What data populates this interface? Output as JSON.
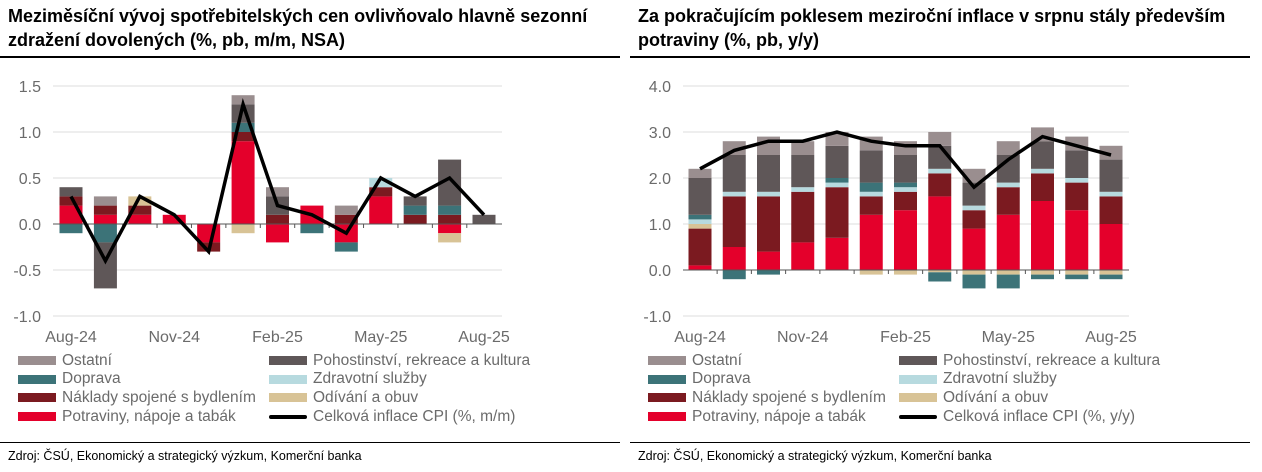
{
  "series_meta": [
    {
      "key": "food",
      "name": "Potraviny, nápoje a tabák",
      "color": "#e4002b"
    },
    {
      "key": "housing",
      "name": "Náklady spojené s bydlením",
      "color": "#7b1a20"
    },
    {
      "key": "clothing",
      "name": "Odívání a obuv",
      "color": "#d8c396"
    },
    {
      "key": "health",
      "name": "Zdravotní služby",
      "color": "#b7dadf"
    },
    {
      "key": "transport",
      "name": "Doprava",
      "color": "#3c7378"
    },
    {
      "key": "leisure",
      "name": "Pohostinství, rekreace a kultura",
      "color": "#5f5758"
    },
    {
      "key": "other",
      "name": "Ostatní",
      "color": "#9a8e8f"
    }
  ],
  "chart_data": [
    {
      "type": "bar",
      "stacked": true,
      "title": "Meziměsíční vývoj spotřebitelských cen ovlivňovalo hlavně sezonní zdražení dovolených (%, pb, m/m, NSA)",
      "categories": [
        "Aug-24",
        "Sep-24",
        "Oct-24",
        "Nov-24",
        "Dec-24",
        "Jan-25",
        "Feb-25",
        "Mar-25",
        "Apr-25",
        "May-25",
        "Jun-25",
        "Jul-25",
        "Aug-25"
      ],
      "x_tick_labels": [
        "Aug-24",
        "Nov-24",
        "Feb-25",
        "May-25",
        "Aug-25"
      ],
      "ylim": [
        -1.0,
        1.5
      ],
      "y_ticks": [
        "-1.0",
        "-0.5",
        "0.0",
        "0.5",
        "1.0",
        "1.5"
      ],
      "grid": true,
      "legend_placement": "bottom",
      "series": [
        {
          "name": "Potraviny, nápoje a tabák",
          "values": [
            0.2,
            0.1,
            0.1,
            0.1,
            -0.2,
            0.9,
            -0.2,
            0.2,
            -0.2,
            0.3,
            0,
            -0.1,
            0
          ]
        },
        {
          "name": "Náklady spojené s bydlením",
          "values": [
            0.1,
            0.1,
            0.1,
            0,
            -0.1,
            0.1,
            0.1,
            0,
            0.1,
            0.1,
            0.1,
            0.1,
            0
          ]
        },
        {
          "name": "Odívání a obuv",
          "values": [
            0,
            0,
            0.1,
            0,
            0,
            -0.1,
            0,
            0,
            0,
            0,
            0,
            -0.1,
            0
          ]
        },
        {
          "name": "Zdravotní služby",
          "values": [
            0,
            0,
            0,
            0,
            0,
            0,
            0,
            0,
            0,
            0.1,
            0,
            0,
            0
          ]
        },
        {
          "name": "Doprava",
          "values": [
            -0.1,
            -0.2,
            0,
            0,
            0,
            0.1,
            0,
            -0.1,
            -0.1,
            0,
            0.1,
            0.1,
            0
          ]
        },
        {
          "name": "Pohostinství, rekreace a kultura",
          "values": [
            0.1,
            -0.5,
            0,
            0,
            0,
            0.2,
            0.2,
            0,
            0,
            0,
            0.1,
            0.5,
            0.1
          ]
        },
        {
          "name": "Ostatní",
          "values": [
            0,
            0.1,
            0,
            0,
            0,
            0.1,
            0.1,
            0,
            0.1,
            0,
            0,
            0,
            0
          ]
        }
      ],
      "line": {
        "name": "Celková inflace CPI (%, m/m)",
        "values": [
          0.3,
          -0.4,
          0.3,
          0.1,
          -0.3,
          1.3,
          0.2,
          0.1,
          -0.1,
          0.5,
          0.3,
          0.5,
          0.1
        ]
      },
      "source": "Zdroj: ČSÚ, Ekonomický a strategický výzkum, Komerční banka"
    },
    {
      "type": "bar",
      "stacked": true,
      "title": "Za pokračujícím poklesem meziroční inflace v srpnu stály především potraviny (%, pb, y/y)",
      "categories": [
        "Aug-24",
        "Sep-24",
        "Oct-24",
        "Nov-24",
        "Dec-24",
        "Jan-25",
        "Feb-25",
        "Mar-25",
        "Apr-25",
        "May-25",
        "Jun-25",
        "Jul-25",
        "Aug-25"
      ],
      "x_tick_labels": [
        "Aug-24",
        "Nov-24",
        "Feb-25",
        "May-25",
        "Aug-25"
      ],
      "ylim": [
        -1.0,
        4.0
      ],
      "y_ticks": [
        "-1.0",
        "0.0",
        "1.0",
        "2.0",
        "3.0",
        "4.0"
      ],
      "grid": true,
      "legend_placement": "bottom",
      "series": [
        {
          "name": "Potraviny, nápoje a tabák",
          "values": [
            0.1,
            0.5,
            0.4,
            0.6,
            0.7,
            1.2,
            1.3,
            1.6,
            0.9,
            1.2,
            1.5,
            1.3,
            1.0
          ]
        },
        {
          "name": "Náklady spojené s bydlením",
          "values": [
            0.8,
            1.1,
            1.2,
            1.1,
            1.1,
            0.4,
            0.4,
            0.5,
            0.4,
            0.6,
            0.6,
            0.6,
            0.6
          ]
        },
        {
          "name": "Odívání a obuv",
          "values": [
            0.1,
            0,
            0,
            0,
            0,
            -0.1,
            -0.1,
            -0.05,
            -0.1,
            -0.1,
            -0.1,
            -0.1,
            -0.1
          ]
        },
        {
          "name": "Zdravotní služby",
          "values": [
            0.1,
            0.1,
            0.1,
            0.1,
            0.1,
            0.1,
            0.1,
            0.1,
            0.1,
            0.1,
            0.1,
            0.1,
            0.1
          ]
        },
        {
          "name": "Doprava",
          "values": [
            0.1,
            -0.2,
            -0.1,
            0,
            0.1,
            0.2,
            0.1,
            -0.2,
            -0.3,
            -0.3,
            -0.1,
            -0.1,
            -0.1
          ]
        },
        {
          "name": "Pohostinství, rekreace a kultura",
          "values": [
            0.8,
            0.8,
            0.8,
            0.7,
            0.7,
            0.7,
            0.6,
            0.5,
            0.5,
            0.6,
            0.6,
            0.6,
            0.7
          ]
        },
        {
          "name": "Ostatní",
          "values": [
            0.2,
            0.3,
            0.4,
            0.3,
            0.3,
            0.3,
            0.3,
            0.3,
            0.3,
            0.3,
            0.3,
            0.3,
            0.3
          ]
        }
      ],
      "line": {
        "name": "Celková inflace CPI (%, y/y)",
        "values": [
          2.2,
          2.6,
          2.8,
          2.8,
          3.0,
          2.8,
          2.7,
          2.7,
          1.8,
          2.4,
          2.9,
          2.7,
          2.5
        ]
      },
      "source": "Zdroj: ČSÚ, Ekonomický a strategický výzkum, Komerční banka"
    }
  ]
}
